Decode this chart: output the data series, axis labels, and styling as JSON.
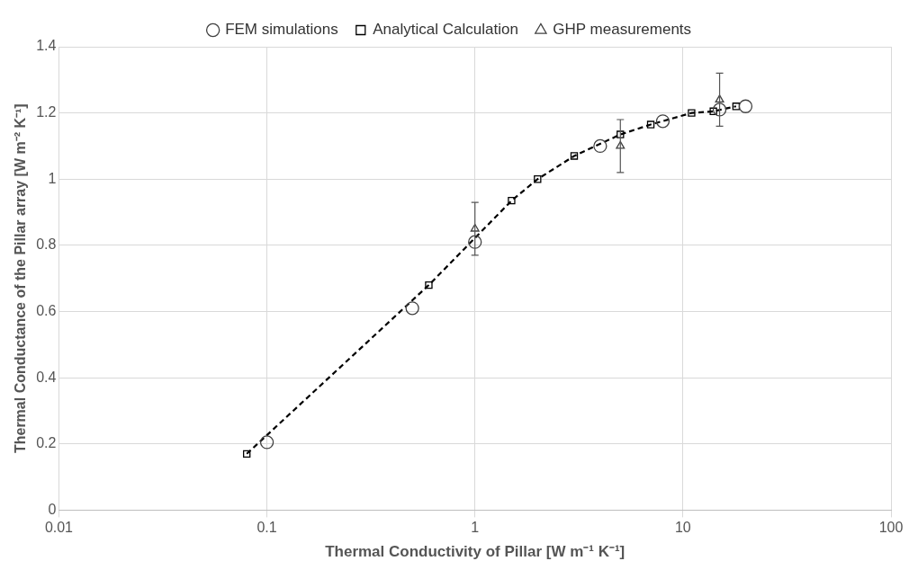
{
  "chart_data": {
    "type": "scatter",
    "xlabel": "Thermal Conductivity of Pillar [W m⁻¹ K⁻¹]",
    "ylabel": "Thermal Conductance of the Pillar array [W m⁻² K⁻¹]",
    "log": "x",
    "xlim": [
      0.01,
      100
    ],
    "xticks": [
      0.01,
      0.1,
      1,
      10,
      100
    ],
    "ylim": [
      0,
      1.4
    ],
    "yticks": [
      0,
      0.2,
      0.4,
      0.6,
      0.8,
      1,
      1.2,
      1.4
    ],
    "grid": true,
    "legend": "top",
    "series": [
      {
        "name": "FEM simulations",
        "type": "scatter",
        "marker": "circle",
        "color": "#404040",
        "x": [
          0.1,
          0.5,
          1,
          4,
          8,
          15,
          20
        ],
        "values": [
          0.205,
          0.61,
          0.81,
          1.1,
          1.175,
          1.21,
          1.22
        ]
      },
      {
        "name": "Analytical Calculation",
        "type": "line",
        "marker": "square",
        "line_style": "dashed",
        "color": "#000000",
        "x": [
          0.08,
          0.6,
          1.5,
          2,
          3,
          5,
          7,
          11,
          14,
          18
        ],
        "values": [
          0.17,
          0.68,
          0.935,
          1.0,
          1.07,
          1.135,
          1.165,
          1.2,
          1.205,
          1.22
        ]
      },
      {
        "name": "GHP measurements",
        "type": "scatter",
        "marker": "triangle",
        "color": "#404040",
        "x": [
          1,
          5,
          15
        ],
        "values": [
          0.85,
          1.1,
          1.24
        ],
        "errors": [
          0.08,
          0.08,
          0.08
        ]
      }
    ]
  }
}
